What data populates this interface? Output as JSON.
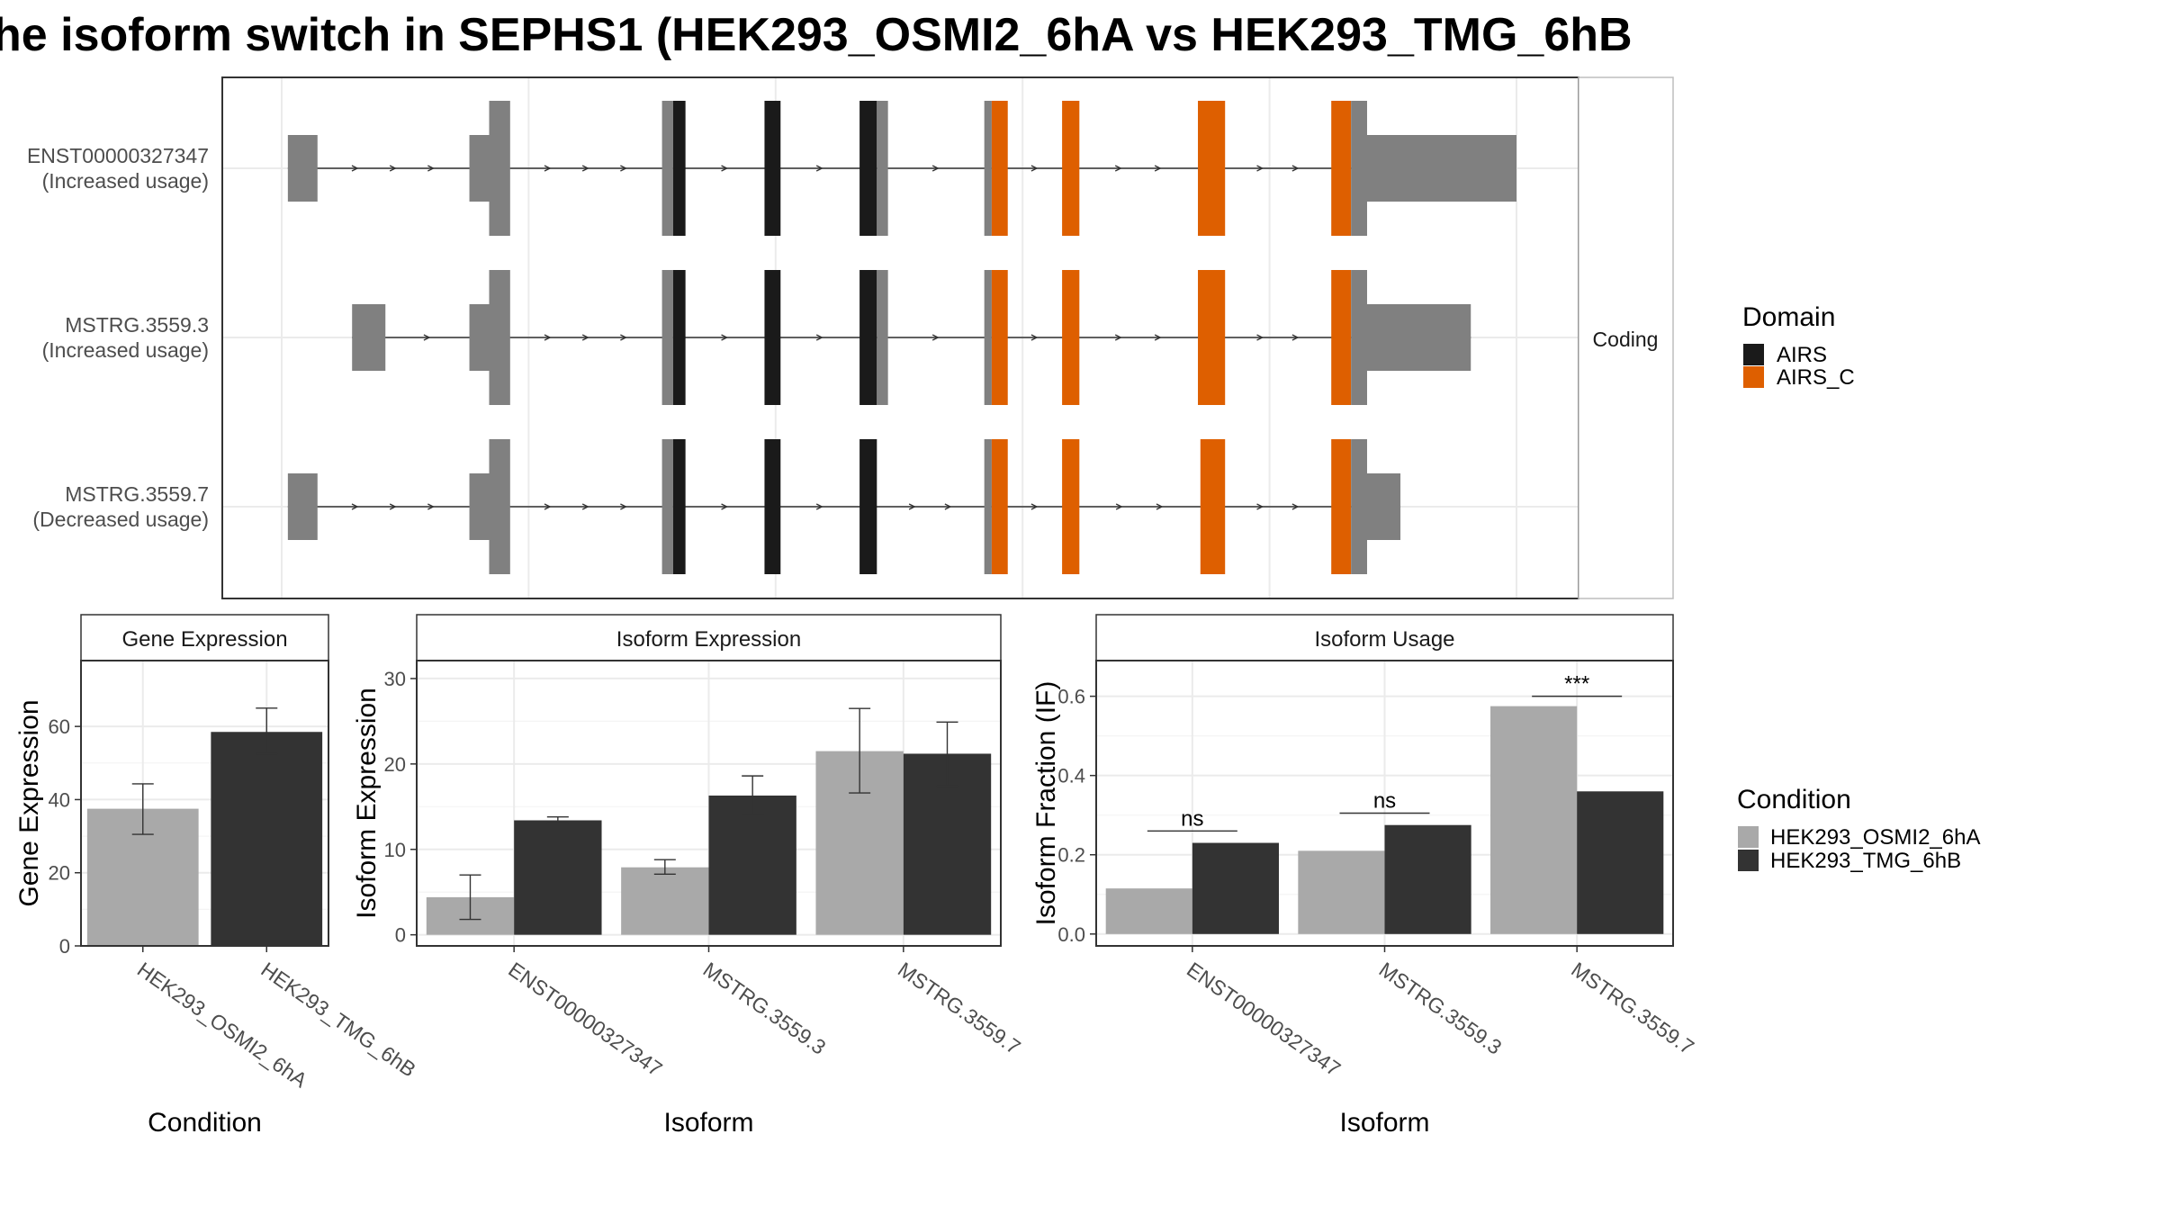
{
  "title": "he isoform switch in SEPHS1 (HEK293_OSMI2_6hA vs HEK293_TMG_6hB",
  "colors": {
    "exon_noncoding": "#808080",
    "domain_AIRS": "#1a1a1a",
    "domain_AIRS_C": "#de5f00",
    "condition_a": "#a9a9a9",
    "condition_b": "#333333",
    "intron": "#333333"
  },
  "chart_data": [
    {
      "type": "gene-structure",
      "strip_label": "Coding",
      "genomic_range": [
        0,
        1000
      ],
      "transcripts": [
        {
          "id": "ENST00000327347",
          "note": "(Increased usage)",
          "exons": [
            {
              "start": 5,
              "end": 29,
              "kind": "utr"
            },
            {
              "start": 152,
              "end": 168,
              "kind": "utr_narrow"
            },
            {
              "start": 168,
              "end": 185,
              "kind": "utr"
            },
            {
              "start": 308,
              "end": 317,
              "kind": "utr"
            },
            {
              "start": 317,
              "end": 327,
              "kind": "AIRS"
            },
            {
              "start": 391,
              "end": 404,
              "kind": "AIRS"
            },
            {
              "start": 468,
              "end": 482,
              "kind": "AIRS"
            },
            {
              "start": 482,
              "end": 491,
              "kind": "utr"
            },
            {
              "start": 569,
              "end": 575,
              "kind": "utr"
            },
            {
              "start": 575,
              "end": 588,
              "kind": "AIRS_C"
            },
            {
              "start": 632,
              "end": 646,
              "kind": "AIRS_C"
            },
            {
              "start": 742,
              "end": 764,
              "kind": "AIRS_C"
            },
            {
              "start": 850,
              "end": 866,
              "kind": "AIRS_C"
            },
            {
              "start": 866,
              "end": 879,
              "kind": "utr"
            },
            {
              "start": 879,
              "end": 1000,
              "kind": "utr_narrow"
            }
          ]
        },
        {
          "id": "MSTRG.3559.3",
          "note": "(Increased usage)",
          "exons": [
            {
              "start": 57,
              "end": 84,
              "kind": "utr"
            },
            {
              "start": 152,
              "end": 168,
              "kind": "utr_narrow"
            },
            {
              "start": 168,
              "end": 185,
              "kind": "utr"
            },
            {
              "start": 308,
              "end": 317,
              "kind": "utr"
            },
            {
              "start": 317,
              "end": 327,
              "kind": "AIRS"
            },
            {
              "start": 391,
              "end": 404,
              "kind": "AIRS"
            },
            {
              "start": 468,
              "end": 482,
              "kind": "AIRS"
            },
            {
              "start": 482,
              "end": 491,
              "kind": "utr"
            },
            {
              "start": 569,
              "end": 575,
              "kind": "utr"
            },
            {
              "start": 575,
              "end": 588,
              "kind": "AIRS_C"
            },
            {
              "start": 632,
              "end": 646,
              "kind": "AIRS_C"
            },
            {
              "start": 742,
              "end": 764,
              "kind": "AIRS_C"
            },
            {
              "start": 850,
              "end": 866,
              "kind": "AIRS_C"
            },
            {
              "start": 866,
              "end": 879,
              "kind": "utr"
            },
            {
              "start": 879,
              "end": 963,
              "kind": "utr_narrow"
            }
          ]
        },
        {
          "id": "MSTRG.3559.7",
          "note": "(Decreased usage)",
          "exons": [
            {
              "start": 5,
              "end": 29,
              "kind": "utr"
            },
            {
              "start": 152,
              "end": 168,
              "kind": "utr_narrow"
            },
            {
              "start": 168,
              "end": 185,
              "kind": "utr"
            },
            {
              "start": 308,
              "end": 317,
              "kind": "utr"
            },
            {
              "start": 317,
              "end": 327,
              "kind": "AIRS"
            },
            {
              "start": 391,
              "end": 404,
              "kind": "AIRS"
            },
            {
              "start": 468,
              "end": 482,
              "kind": "AIRS"
            },
            {
              "start": 569,
              "end": 575,
              "kind": "utr"
            },
            {
              "start": 575,
              "end": 588,
              "kind": "AIRS_C"
            },
            {
              "start": 632,
              "end": 646,
              "kind": "AIRS_C"
            },
            {
              "start": 744,
              "end": 764,
              "kind": "AIRS_C"
            },
            {
              "start": 850,
              "end": 866,
              "kind": "AIRS_C"
            },
            {
              "start": 866,
              "end": 879,
              "kind": "utr"
            },
            {
              "start": 879,
              "end": 906,
              "kind": "utr_narrow"
            }
          ]
        }
      ],
      "legend": {
        "title": "Domain",
        "entries": [
          "AIRS",
          "AIRS_C"
        ]
      }
    },
    {
      "type": "bar",
      "panel_title": "Gene Expression",
      "xlabel": "Condition",
      "ylabel": "Gene Expression",
      "ylim": [
        0,
        78
      ],
      "yticks": [
        0,
        20,
        40,
        60
      ],
      "categories": [
        "HEK293_OSMI2_6hA",
        "HEK293_TMG_6hB"
      ],
      "values": [
        37.5,
        58.5
      ],
      "error_low": [
        30.5,
        52.5
      ],
      "error_high": [
        44.3,
        65.0
      ]
    },
    {
      "type": "bar",
      "panel_title": "Isoform Expression",
      "xlabel": "Isoform",
      "ylabel": "Isoform Expression",
      "ylim": [
        -1.3,
        32.1
      ],
      "yticks": [
        0,
        10,
        20,
        30
      ],
      "categories": [
        "ENST00000327347",
        "MSTRG.3559.3",
        "MSTRG.3559.7"
      ],
      "series": [
        {
          "name": "HEK293_OSMI2_6hA",
          "values": [
            4.4,
            7.9,
            21.5
          ],
          "error_low": [
            1.8,
            7.1,
            16.6
          ],
          "error_high": [
            7.0,
            8.8,
            26.5
          ]
        },
        {
          "name": "HEK293_TMG_6hB",
          "values": [
            13.4,
            16.3,
            21.2
          ],
          "error_low": [
            13.1,
            14.0,
            17.4
          ],
          "error_high": [
            13.8,
            18.6,
            24.9
          ]
        }
      ]
    },
    {
      "type": "bar",
      "panel_title": "Isoform Usage",
      "xlabel": "Isoform",
      "ylabel": "Isoform Fraction (IF)",
      "ylim": [
        -0.03,
        0.69
      ],
      "yticks": [
        0.0,
        0.2,
        0.4,
        0.6
      ],
      "categories": [
        "ENST00000327347",
        "MSTRG.3559.3",
        "MSTRG.3559.7"
      ],
      "series": [
        {
          "name": "HEK293_OSMI2_6hA",
          "values": [
            0.115,
            0.21,
            0.575
          ]
        },
        {
          "name": "HEK293_TMG_6hB",
          "values": [
            0.23,
            0.275,
            0.36
          ]
        }
      ],
      "significance": [
        {
          "label": "ns",
          "y": 0.26
        },
        {
          "label": "ns",
          "y": 0.305
        },
        {
          "label": "***",
          "y": 0.6
        }
      ]
    }
  ],
  "condition_legend": {
    "title": "Condition",
    "entries": [
      "HEK293_OSMI2_6hA",
      "HEK293_TMG_6hB"
    ]
  }
}
